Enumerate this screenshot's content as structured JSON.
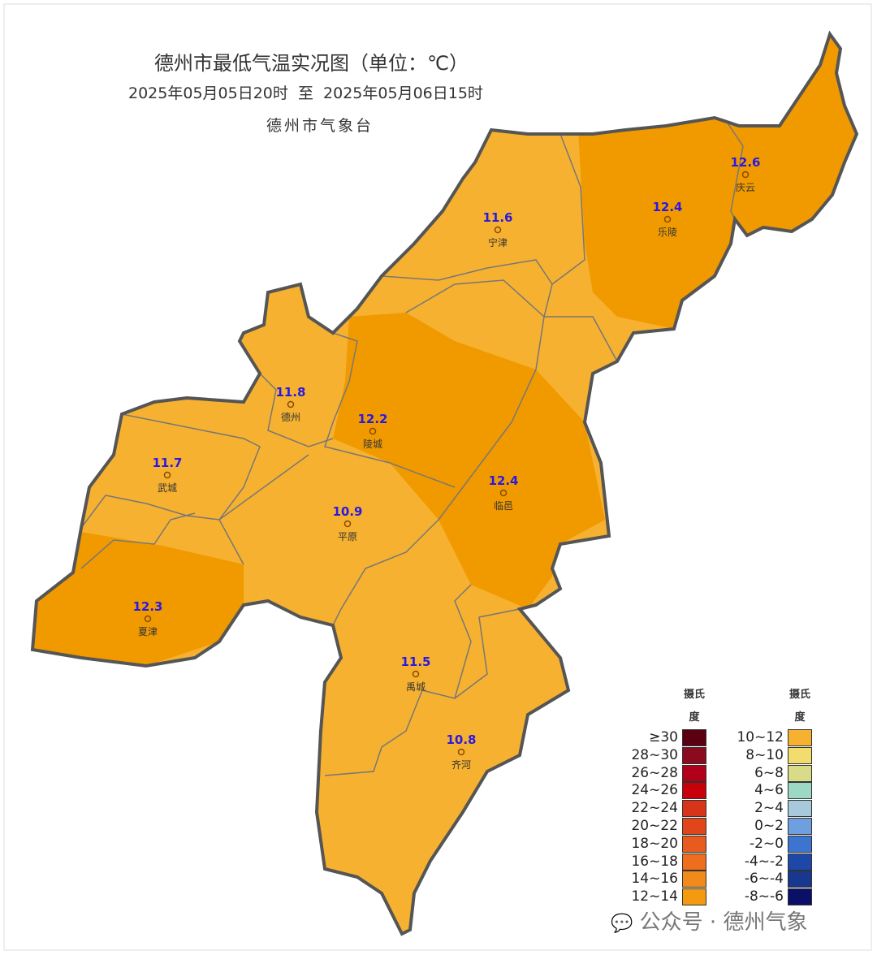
{
  "title": "德州市最低气温实况图（单位：℃）",
  "subtitle": "2025年05月05日20时  至  2025年05月06日15时",
  "agency": "德州市气象台",
  "stations": [
    {
      "name": "庆云",
      "value": 12.6
    },
    {
      "name": "乐陵",
      "value": 12.4
    },
    {
      "name": "宁津",
      "value": 11.6
    },
    {
      "name": "德州",
      "value": 11.8
    },
    {
      "name": "陵城",
      "value": 12.2
    },
    {
      "name": "武城",
      "value": 11.7
    },
    {
      "name": "临邑",
      "value": 12.4
    },
    {
      "name": "平原",
      "value": 10.9
    },
    {
      "name": "夏津",
      "value": 12.3
    },
    {
      "name": "禹城",
      "value": 11.5
    },
    {
      "name": "齐河",
      "value": 10.8
    }
  ],
  "legend": [
    {
      "header": "摄氏度",
      "items": [
        {
          "label": "≥30",
          "color": "#5a0012"
        },
        {
          "label": "28~30",
          "color": "#8a0a1e"
        },
        {
          "label": "26~28",
          "color": "#b3001a"
        },
        {
          "label": "24~26",
          "color": "#c8000a"
        },
        {
          "label": "22~24",
          "color": "#d8341a"
        },
        {
          "label": "20~22",
          "color": "#e0461a"
        },
        {
          "label": "18~20",
          "color": "#e85a1e"
        },
        {
          "label": "16~18",
          "color": "#ed6e1e"
        },
        {
          "label": "14~16",
          "color": "#f08a1a"
        },
        {
          "label": "12~14",
          "color": "#f39a10"
        }
      ]
    },
    {
      "header": "摄氏度",
      "items": [
        {
          "label": "10~12",
          "color": "#f6b130"
        },
        {
          "label": "8~10",
          "color": "#f2dc6e"
        },
        {
          "label": "6~8",
          "color": "#d8dc88"
        },
        {
          "label": "4~6",
          "color": "#9cd8c4"
        },
        {
          "label": "2~4",
          "color": "#a8c8dc"
        },
        {
          "label": "0~2",
          "color": "#6ea0e0"
        },
        {
          "label": "-2~0",
          "color": "#3c74d0"
        },
        {
          "label": "-4~-2",
          "color": "#1e48a8"
        },
        {
          "label": "-6~-4",
          "color": "#183890"
        },
        {
          "label": "-8~-6",
          "color": "#0a1068"
        }
      ]
    }
  ],
  "watermark": "公众号 · 德州气象"
}
